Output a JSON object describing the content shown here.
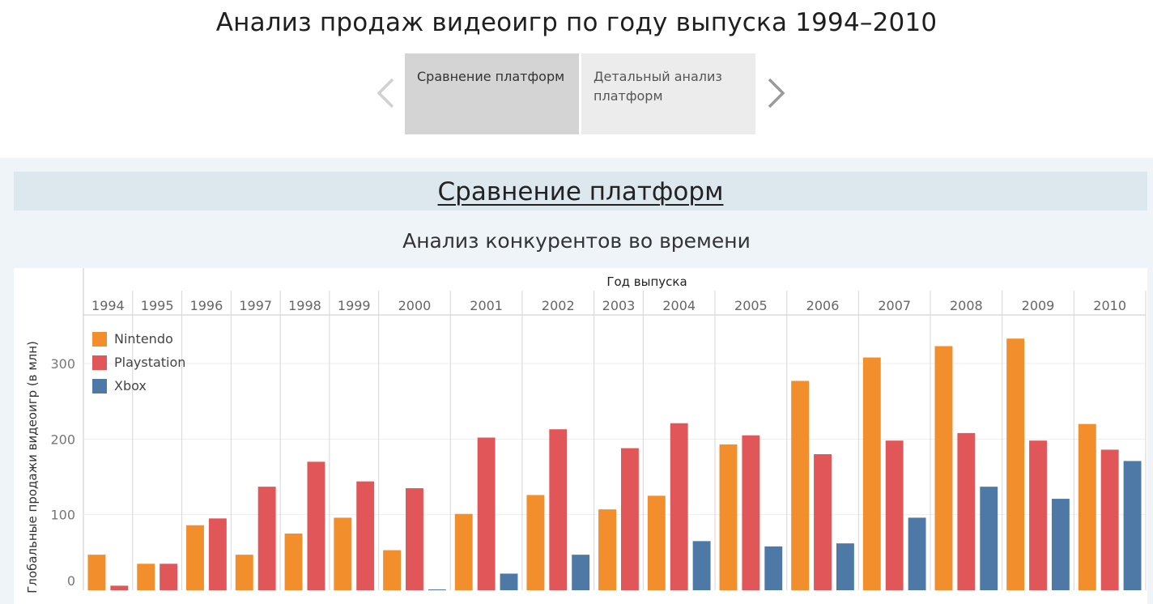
{
  "page": {
    "title": "Анализ продаж видеоигр по году выпуска 1994–2010"
  },
  "story_nav": {
    "points": [
      {
        "label": "Сравнение платформ",
        "active": true
      },
      {
        "label": "Детальный анализ платформ",
        "active": false
      }
    ],
    "prev_icon": "chevron-left-icon",
    "next_icon": "chevron-right-icon"
  },
  "section": {
    "title": "Сравнение платформ"
  },
  "chart_section": {
    "title": "Анализ конкурентов во времени"
  },
  "chart_data": {
    "type": "bar",
    "xlabel": "Год выпуска",
    "ylabel": "Глобальные продажи видеоигр (в млн)",
    "ylim": [
      0,
      345
    ],
    "yticks": [
      0,
      100,
      200,
      300
    ],
    "grid": true,
    "legend_position": "top-left",
    "categories": [
      "1994",
      "1995",
      "1996",
      "1997",
      "1998",
      "1999",
      "2000",
      "2001",
      "2002",
      "2003",
      "2004",
      "2005",
      "2006",
      "2007",
      "2008",
      "2009",
      "2010"
    ],
    "series": [
      {
        "name": "Nintendo",
        "color": "#f28e2b",
        "values": [
          47,
          35,
          86,
          47,
          75,
          96,
          53,
          101,
          126,
          107,
          125,
          193,
          277,
          308,
          323,
          333,
          220
        ]
      },
      {
        "name": "Playstation",
        "color": "#e15759",
        "values": [
          6,
          35,
          95,
          137,
          170,
          144,
          135,
          202,
          213,
          188,
          221,
          205,
          180,
          198,
          208,
          198,
          186
        ]
      },
      {
        "name": "Xbox",
        "color": "#4e79a7",
        "values": [
          null,
          null,
          null,
          null,
          null,
          null,
          1,
          22,
          47,
          null,
          65,
          58,
          62,
          96,
          137,
          121,
          171
        ]
      }
    ]
  }
}
